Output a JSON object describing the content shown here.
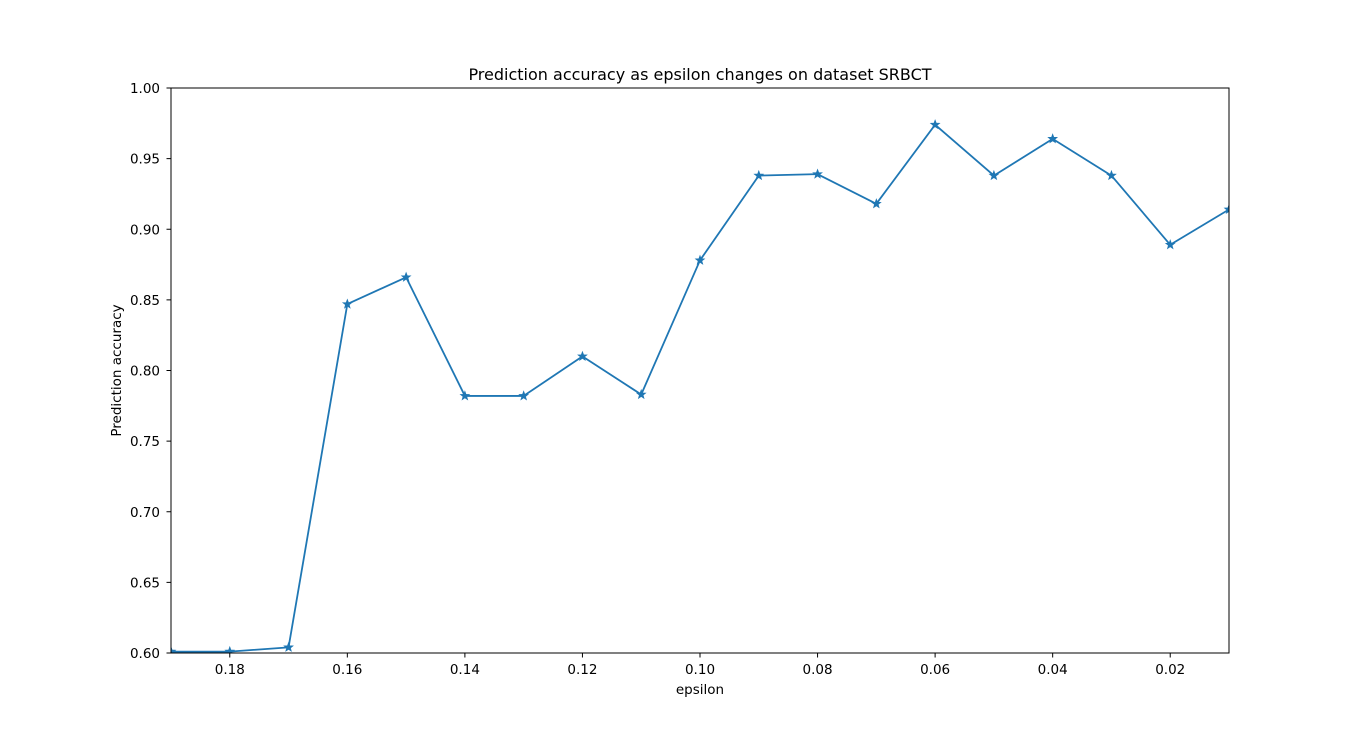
{
  "chart_data": {
    "type": "line",
    "title": "Prediction accuracy as epsilon changes on dataset SRBCT",
    "xlabel": "epsilon",
    "ylabel": "Prediction accuracy",
    "xlim": [
      0.19,
      0.01
    ],
    "ylim": [
      0.6,
      1.0
    ],
    "x_inverted": true,
    "grid": false,
    "xticks": [
      0.18,
      0.16,
      0.14,
      0.12,
      0.1,
      0.08,
      0.06,
      0.04,
      0.02
    ],
    "xtick_labels": [
      "0.18",
      "0.16",
      "0.14",
      "0.12",
      "0.10",
      "0.08",
      "0.06",
      "0.04",
      "0.02"
    ],
    "yticks": [
      0.6,
      0.65,
      0.7,
      0.75,
      0.8,
      0.85,
      0.9,
      0.95,
      1.0
    ],
    "ytick_labels": [
      "0.60",
      "0.65",
      "0.70",
      "0.75",
      "0.80",
      "0.85",
      "0.90",
      "0.95",
      "1.00"
    ],
    "marker": "star",
    "color": "#1f77b4",
    "series": [
      {
        "x": [
          0.19,
          0.18,
          0.17,
          0.16,
          0.15,
          0.14,
          0.13,
          0.12,
          0.11,
          0.1,
          0.09,
          0.08,
          0.07,
          0.06,
          0.05,
          0.04,
          0.03,
          0.02,
          0.01
        ],
        "y": [
          0.601,
          0.601,
          0.604,
          0.847,
          0.866,
          0.782,
          0.782,
          0.81,
          0.783,
          0.878,
          0.938,
          0.939,
          0.918,
          0.974,
          0.938,
          0.964,
          0.938,
          0.889,
          0.914
        ]
      }
    ]
  }
}
